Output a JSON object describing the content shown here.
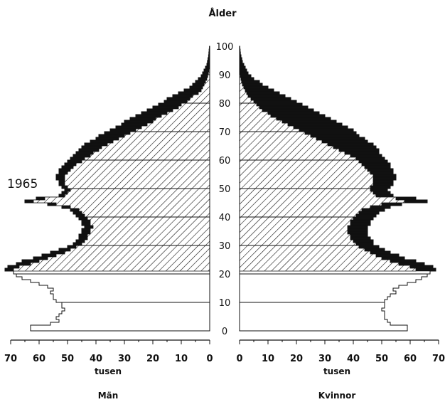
{
  "chart_data": {
    "type": "population-pyramid",
    "title": "Ålder",
    "year_label": "1965",
    "age_ticks": [
      "0",
      "10",
      "20",
      "30",
      "40",
      "50",
      "60",
      "70",
      "80",
      "90",
      "100"
    ],
    "left": {
      "name": "Män",
      "unit": "tusen",
      "x_ticks": [
        "70",
        "60",
        "50",
        "40",
        "30",
        "20",
        "10",
        "0"
      ]
    },
    "right": {
      "name": "Kvinnor",
      "unit": "tusen",
      "x_ticks": [
        "0",
        "10",
        "20",
        "30",
        "40",
        "50",
        "60",
        "70"
      ]
    },
    "xlim": [
      0,
      70
    ],
    "ylim": [
      0,
      100
    ],
    "ages": [
      0,
      1,
      2,
      3,
      4,
      5,
      6,
      7,
      8,
      9,
      10,
      11,
      12,
      13,
      14,
      15,
      16,
      17,
      18,
      19,
      20,
      21,
      22,
      23,
      24,
      25,
      26,
      27,
      28,
      29,
      30,
      31,
      32,
      33,
      34,
      35,
      36,
      37,
      38,
      39,
      40,
      41,
      42,
      43,
      44,
      45,
      46,
      47,
      48,
      49,
      50,
      51,
      52,
      53,
      54,
      55,
      56,
      57,
      58,
      59,
      60,
      61,
      62,
      63,
      64,
      65,
      66,
      67,
      68,
      69,
      70,
      71,
      72,
      73,
      74,
      75,
      76,
      77,
      78,
      79,
      80,
      81,
      82,
      83,
      84,
      85,
      86,
      87,
      88,
      89,
      90,
      91,
      92,
      93,
      94,
      95,
      96,
      97,
      98,
      99
    ],
    "men_total": [
      63,
      63,
      56,
      53,
      54,
      53,
      52,
      51,
      52,
      52,
      54,
      55,
      55,
      56,
      55,
      57,
      60,
      63,
      66,
      68,
      69,
      72,
      71,
      68,
      66,
      62,
      59,
      56,
      53,
      50,
      48,
      47,
      46,
      46,
      45,
      45,
      44,
      45,
      45,
      46,
      47,
      48,
      49,
      52,
      57,
      65,
      61,
      53,
      52,
      51,
      52,
      53,
      53,
      54,
      54,
      53,
      53,
      52,
      51,
      50,
      49,
      48,
      47,
      46,
      45,
      44,
      42,
      40,
      39,
      37,
      35,
      33,
      31,
      30,
      28,
      26,
      24,
      22,
      20,
      18,
      16,
      15,
      13,
      11,
      9,
      7,
      6,
      5,
      4,
      3,
      2.5,
      2,
      1.5,
      1,
      0.8,
      0.6,
      0.4,
      0.3,
      0.2,
      0.1
    ],
    "men_surv": [
      0,
      0,
      0,
      0,
      0,
      0,
      0,
      0,
      0,
      0,
      0,
      0,
      0,
      0,
      0,
      0,
      0,
      0,
      0,
      0,
      0,
      69,
      67,
      63,
      60,
      57,
      54,
      51,
      49,
      47,
      45,
      44,
      43,
      43,
      42,
      42,
      41,
      42,
      42,
      43,
      44,
      45,
      46,
      49,
      54,
      62,
      58,
      51,
      50,
      49,
      50,
      51,
      51,
      51,
      51,
      50,
      49,
      48,
      47,
      45,
      44,
      42,
      41,
      39,
      38,
      36,
      34,
      32,
      30,
      28,
      26,
      24,
      22,
      20,
      19,
      17,
      15,
      13,
      11,
      10,
      8,
      7,
      6,
      4,
      3,
      2.5,
      2,
      1.5,
      1,
      0.7,
      0.5,
      0.3,
      0.2,
      0.1,
      0,
      0,
      0,
      0,
      0,
      0
    ],
    "women_total": [
      59,
      59,
      53,
      52,
      51,
      51,
      51,
      50,
      51,
      51,
      51,
      52,
      53,
      55,
      54,
      56,
      59,
      62,
      64,
      66,
      67,
      69,
      68,
      65,
      62,
      58,
      56,
      53,
      51,
      49,
      47,
      47,
      46,
      45,
      45,
      45,
      45,
      46,
      46,
      47,
      48,
      49,
      51,
      53,
      57,
      66,
      62,
      54,
      53,
      52,
      53,
      54,
      54,
      55,
      55,
      54,
      54,
      53,
      53,
      52,
      51,
      50,
      49,
      49,
      48,
      47,
      45,
      44,
      42,
      41,
      40,
      38,
      36,
      34,
      32,
      30,
      28,
      26,
      24,
      22,
      20,
      18,
      16,
      14,
      12,
      10,
      8,
      7,
      5,
      4,
      3,
      2.5,
      2,
      1.5,
      1,
      0.8,
      0.5,
      0.3,
      0.2,
      0.1
    ],
    "women_surv": [
      0,
      0,
      0,
      0,
      0,
      0,
      0,
      0,
      0,
      0,
      0,
      0,
      0,
      0,
      0,
      0,
      0,
      0,
      0,
      0,
      0,
      62,
      60,
      56,
      53,
      50,
      48,
      46,
      44,
      42,
      41,
      40,
      39,
      39,
      38,
      38,
      38,
      39,
      39,
      40,
      41,
      42,
      43,
      46,
      50,
      58,
      55,
      48,
      47,
      46,
      46,
      47,
      47,
      47,
      47,
      46,
      45,
      44,
      43,
      42,
      41,
      39,
      37,
      35,
      33,
      31,
      29,
      27,
      25,
      23,
      21,
      19,
      17,
      15,
      13,
      11,
      10,
      8,
      7,
      6,
      5,
      4,
      3,
      2.5,
      2,
      1.5,
      1,
      0.7,
      0.5,
      0.3,
      0.2,
      0.1,
      0,
      0,
      0,
      0,
      0,
      0,
      0,
      0
    ]
  }
}
